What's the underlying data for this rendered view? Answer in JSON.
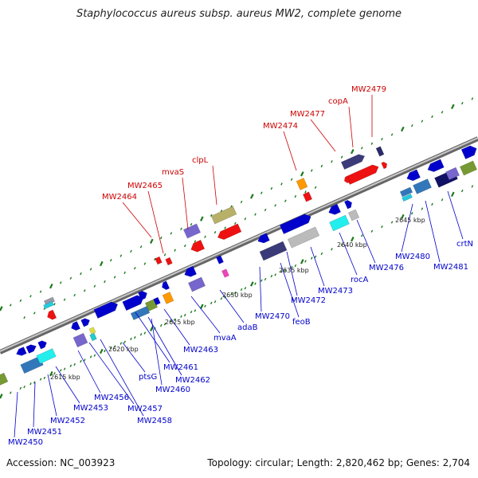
{
  "title": "Staphylococcus aureus subsp. aureus MW2, complete genome",
  "footer": {
    "accession": "Accession: NC_003923",
    "summary": "Topology: circular; Length: 2,820,462 bp; Genes: 2,704"
  },
  "colors": {
    "backbone": "#8a8a8a",
    "red_label": "#cc0000",
    "blue_label": "#0000cc",
    "tick": "#1a7a1a"
  },
  "kbp_labels": [
    "2615 kbp",
    "2620 kbp",
    "2625 kbp",
    "2630 kbp",
    "2635 kbp",
    "2640 kbp",
    "2645 kbp"
  ],
  "upper_genes": [
    "MW2464",
    "MW2465",
    "mvaS",
    "clpL",
    "MW2474",
    "MW2477",
    "copA",
    "MW2479"
  ],
  "lower_genes": [
    "MW2450",
    "MW2451",
    "MW2452",
    "MW2453",
    "MW2456",
    "MW2457",
    "MW2458",
    "ptsG",
    "MW2460",
    "MW2461",
    "MW2462",
    "MW2463",
    "mvaA",
    "adaB",
    "MW2470",
    "feoB",
    "MW2472",
    "MW2473",
    "rocA",
    "MW2476",
    "MW2480",
    "MW2481",
    "crtN"
  ]
}
